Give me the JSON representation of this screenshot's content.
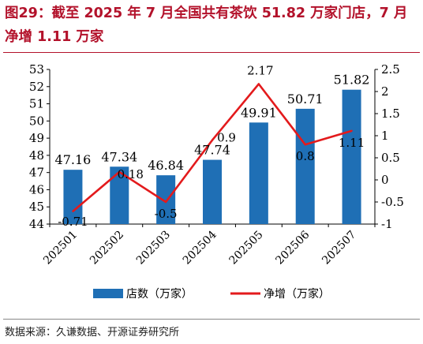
{
  "title": "图29：截至 2025 年 7 月全国共有茶饮 51.82 万家门店，7 月净增 1.11 万家",
  "source": "数据来源：久谦数据、开源证券研究所",
  "chart_data": {
    "type": "bar",
    "categories": [
      "202501",
      "202502",
      "202503",
      "202504",
      "202505",
      "202506",
      "202507"
    ],
    "series": [
      {
        "name": "店数（万家）",
        "type": "bar",
        "axis": "left",
        "color": "#1f6fb5",
        "values": [
          47.16,
          47.34,
          46.84,
          47.74,
          49.91,
          50.71,
          51.82
        ],
        "labels": [
          "47.16",
          "47.34",
          "46.84",
          "47.74",
          "49.91",
          "50.71",
          "51.82"
        ]
      },
      {
        "name": "净增（万家）",
        "type": "line",
        "axis": "right",
        "color": "#e31a1c",
        "values": [
          -0.71,
          0.18,
          -0.5,
          0.9,
          2.17,
          0.8,
          1.11
        ],
        "labels": [
          "-0.71",
          "0.18",
          "-0.5",
          "0.9",
          "2.17",
          "0.8",
          "1.11"
        ]
      }
    ],
    "y_left": {
      "min": 44,
      "max": 53,
      "step": 1,
      "ticks": [
        "44",
        "45",
        "46",
        "47",
        "48",
        "49",
        "50",
        "51",
        "52",
        "53"
      ]
    },
    "y_right": {
      "min": -1,
      "max": 2.5,
      "step": 0.5,
      "ticks": [
        "-1",
        "-0.5",
        "0",
        "0.5",
        "1",
        "1.5",
        "2",
        "2.5"
      ]
    },
    "grid": false,
    "legend_position": "bottom"
  }
}
